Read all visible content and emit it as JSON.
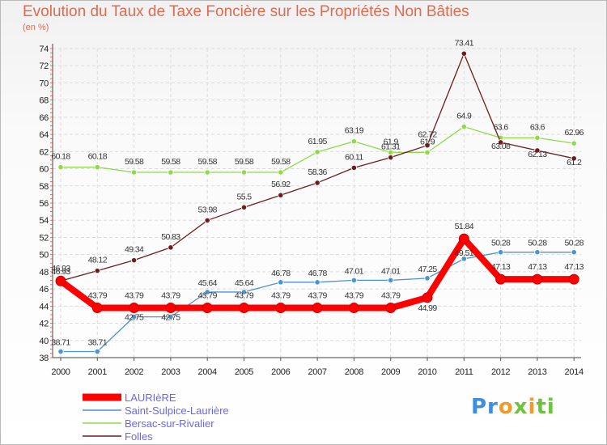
{
  "chart_data": {
    "type": "line",
    "title": "Evolution du Taux de Taxe Foncière sur les Propriétés Non Bâties",
    "subtitle": "(en %)",
    "x": [
      "2000",
      "2001",
      "2002",
      "2003",
      "2004",
      "2005",
      "2006",
      "2007",
      "2008",
      "2009",
      "2010",
      "2011",
      "2012",
      "2013",
      "2014"
    ],
    "ylim": [
      38,
      74
    ],
    "yticks": [
      38,
      40,
      42,
      44,
      46,
      48,
      50,
      52,
      54,
      56,
      58,
      60,
      62,
      64,
      66,
      68,
      70,
      72,
      74
    ],
    "grid": true,
    "legend_position": "bottom-left",
    "series": [
      {
        "name": "LAURIèRE",
        "color": "#ff0000",
        "values": [
          46.93,
          43.79,
          43.79,
          43.79,
          43.79,
          43.79,
          43.79,
          43.79,
          43.79,
          43.79,
          44.99,
          51.84,
          47.13,
          47.13,
          47.13
        ],
        "labels": [
          "46.93",
          "43.79",
          "43.79",
          "43.79",
          "43.79",
          "43.79",
          "43.79",
          "43.79",
          "43.79",
          "43.79",
          "44.99",
          "51.84",
          "47.13",
          "47.13",
          "47.13"
        ]
      },
      {
        "name": "Saint-Sulpice-Laurière",
        "color": "#4b93d2",
        "values": [
          38.71,
          38.71,
          42.75,
          42.75,
          45.64,
          45.64,
          46.78,
          46.78,
          47.01,
          47.01,
          47.25,
          49.51,
          50.28,
          50.28,
          50.28
        ],
        "labels": [
          "38.71",
          "38.71",
          "42.75",
          "42.75",
          "45.64",
          "45.64",
          "46.78",
          "46.78",
          "47.01",
          "47.01",
          "47.25",
          "49.51",
          "50.28",
          "50.28",
          "50.28"
        ]
      },
      {
        "name": "Bersac-sur-Rivalier",
        "color": "#8fd94a",
        "values": [
          60.18,
          60.18,
          59.58,
          59.58,
          59.58,
          59.58,
          59.58,
          61.95,
          63.19,
          61.9,
          61.9,
          64.9,
          63.6,
          63.6,
          62.96
        ],
        "labels": [
          "60.18",
          "60.18",
          "59.58",
          "59.58",
          "59.58",
          "59.58",
          "59.58",
          "61.95",
          "63.19",
          "61.9",
          "61.9",
          "64.9",
          "63.6",
          "63.6",
          "62.96"
        ]
      },
      {
        "name": "Folles",
        "color": "#6b1d1f",
        "values": [
          46.93,
          48.12,
          49.34,
          50.83,
          53.98,
          55.5,
          56.92,
          58.36,
          60.11,
          61.31,
          62.72,
          73.41,
          63.08,
          62.13,
          61.2
        ],
        "labels": [
          "46.93",
          "48.12",
          "49.34",
          "50.83",
          "53.98",
          "55.5",
          "56.92",
          "58.36",
          "60.11",
          "61.31",
          "62.72",
          "73.41",
          "63.08",
          "62.13",
          "61.2"
        ]
      }
    ]
  },
  "brand": {
    "p1": "Pr",
    "p2": "o",
    "p3": "x",
    "p4": "i",
    "p5": "ti"
  }
}
